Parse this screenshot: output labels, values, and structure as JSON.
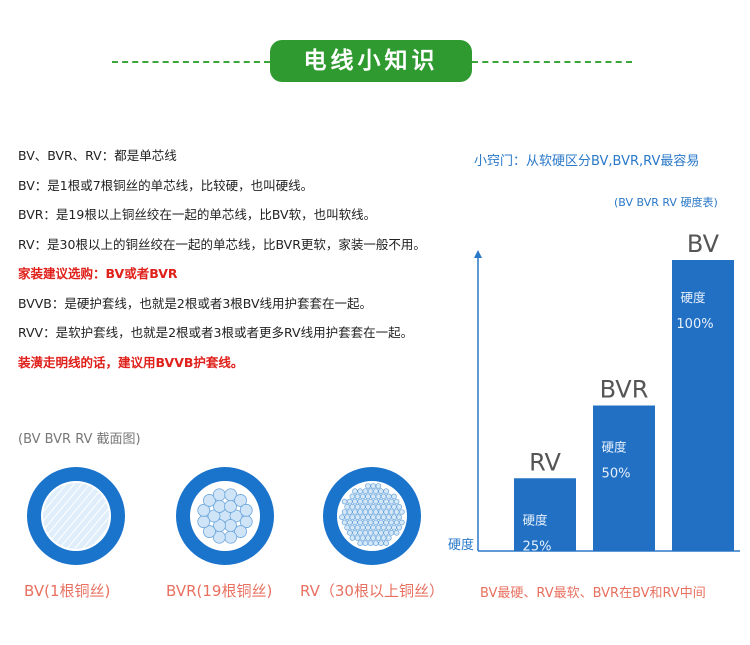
{
  "header": {
    "title": "电线小知识"
  },
  "descriptions": [
    {
      "text": "BV、BVR、RV：都是单芯线",
      "highlight": false
    },
    {
      "text": "BV：是1根或7根铜丝的单芯线，比较硬，也叫硬线。",
      "highlight": false
    },
    {
      "text": "BVR：是19根以上铜丝绞在一起的单芯线，比BV软，也叫软线。",
      "highlight": false
    },
    {
      "text": "RV：是30根以上的铜丝绞在一起的单芯线，比BVR更软，家装一般不用。",
      "highlight": false
    },
    {
      "text": "家装建议选购：BV或者BVR",
      "highlight": true
    },
    {
      "text": "BVVB：是硬护套线，也就是2根或者3根BV线用护套套在一起。",
      "highlight": false
    },
    {
      "text": "RVV：是软护套线，也就是2根或者3根或者更多RV线用护套套在一起。",
      "highlight": false
    },
    {
      "text": "装潢走明线的话，建议用BVVB护套线。",
      "highlight": true
    }
  ],
  "cross_section": {
    "caption": "(BV BVR RV 截面图)",
    "labels": [
      "BV(1根铜丝)",
      "BVR(19根铜丝)",
      "RV（30根以上铜丝）"
    ]
  },
  "tip": "小窍门：从软硬区分BV,BVR,RV最容易",
  "chart_data": {
    "type": "bar",
    "title": "(BV BVR RV 硬度表)",
    "categories": [
      "RV",
      "BVR",
      "BV"
    ],
    "values": [
      25,
      50,
      100
    ],
    "value_labels": [
      "25%",
      "50%",
      "100%"
    ],
    "bar_label": "硬度",
    "ylabel": "硬度",
    "ylim": [
      0,
      100
    ],
    "grid": false,
    "note": "BV最硬、RV最软、BVR在BV和RV中间"
  },
  "colors": {
    "accent_green": "#2f9a2f",
    "bar_blue": "#2170c4",
    "cable_blue": "#1a74cc",
    "highlight_red": "#e0201a",
    "label_salmon": "#e87060"
  }
}
